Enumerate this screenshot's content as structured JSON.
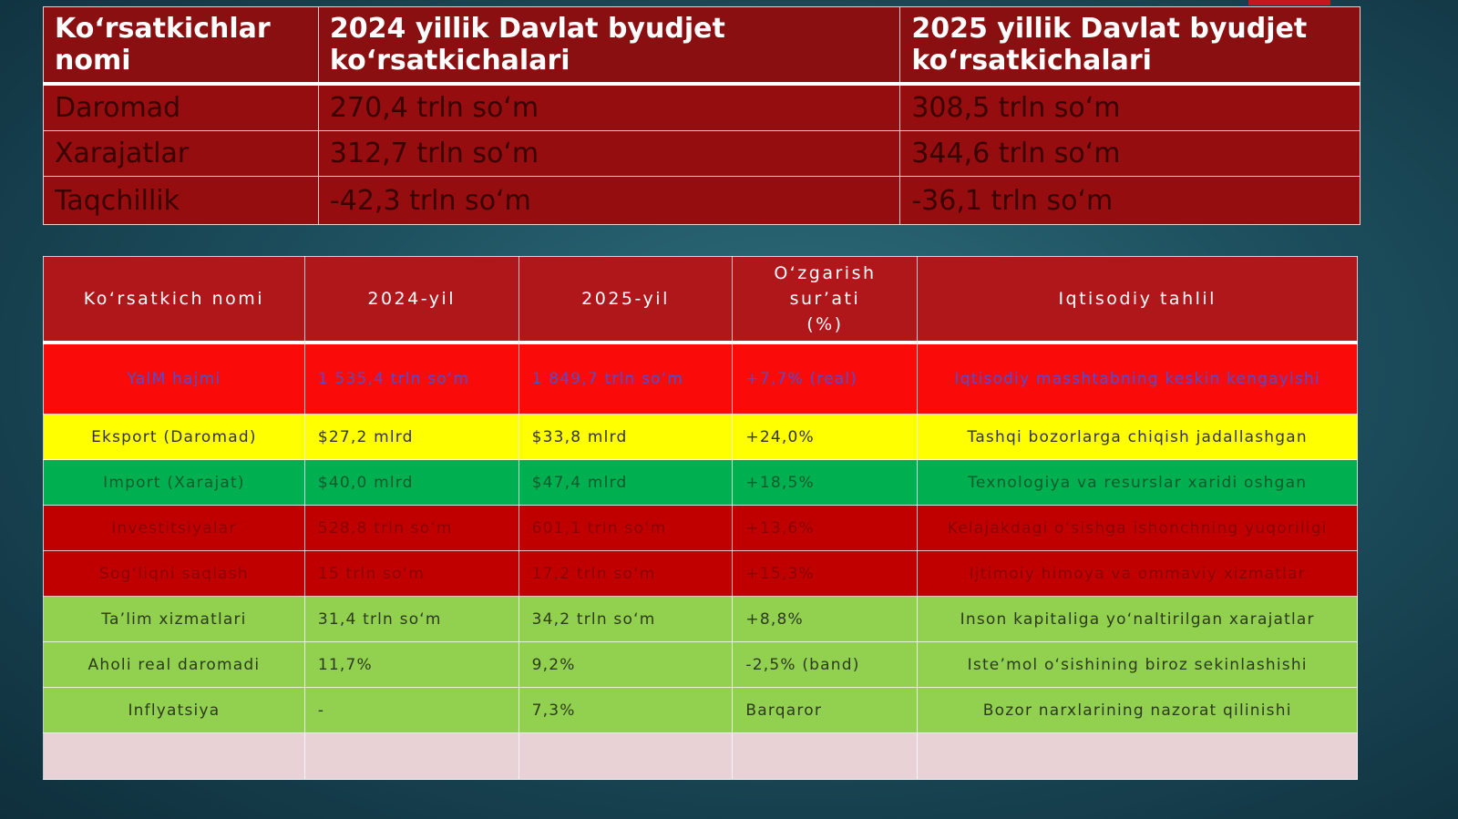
{
  "budget_table": {
    "headers": [
      "Ko‘rsatkichlar nomi",
      "2024 yillik  Davlat byudjet ko‘rsatkichalari",
      "2025 yillik Davlat byudjet ko‘rsatkichalari"
    ],
    "rows": [
      [
        "Daromad",
        "270,4 trln so‘m",
        "308,5 trln so‘m"
      ],
      [
        "Xarajatlar",
        "312,7 trln so‘m",
        "344,6 trln so‘m"
      ],
      [
        "Taqchillik",
        "-42,3 trln so‘m",
        "-36,1 trln so‘m"
      ]
    ]
  },
  "indicators_table": {
    "headers": [
      "Ko‘rsatkich nomi",
      "2024-yil",
      "2025-yil",
      "O‘zgarish sur’ati (%)",
      "Iqtisodiy  tahlil"
    ],
    "rows": [
      [
        "YaIM hajmi",
        "1 535,4 trln so‘m",
        "1 849,7 trln so‘m",
        "+7,7% (real)",
        "Iqtisodiy masshtabning keskin kengayishi"
      ],
      [
        "Eksport (Daromad)",
        "$27,2 mlrd",
        "$33,8 mlrd",
        "+24,0%",
        "Tashqi bozorlarga chiqish jadallashgan"
      ],
      [
        "Import (Xarajat)",
        "$40,0 mlrd",
        "$47,4 mlrd",
        "+18,5%",
        "Texnologiya va resurslar xaridi oshgan"
      ],
      [
        "Investitsiyalar",
        "528,8 trln so‘m",
        "601,1 trln so‘m",
        "+13,6%",
        "Kelajakdagi o‘sishga ishonchning yuqoriligi"
      ],
      [
        "Sog‘liqni saqlash",
        "15 trln so‘m",
        "17,2 trln so‘m",
        "+15,3%",
        "Ijtimoiy himoya va ommaviy xizmatlar"
      ],
      [
        "Ta’lim xizmatlari",
        "31,4 trln so‘m",
        "34,2 trln so‘m",
        "+8,8%",
        "Inson kapitaliga yo‘naltirilgan xarajatlar"
      ],
      [
        "Aholi real daromadi",
        "11,7%",
        "9,2%",
        "-2,5% (band)",
        "Iste’mol o‘sishining biroz sekinlashishi"
      ],
      [
        "Inflyatsiya",
        "-",
        "7,3%",
        "Barqaror",
        "Bozor narxlarining nazorat qilinishi"
      ],
      [
        "",
        "",
        "",
        "",
        ""
      ]
    ],
    "row_colors": [
      "#fb0a0a",
      "#ffff00",
      "#00b050",
      "#c00000",
      "#c00000",
      "#92d050",
      "#92d050",
      "#92d050",
      "#e8d2d6"
    ]
  }
}
